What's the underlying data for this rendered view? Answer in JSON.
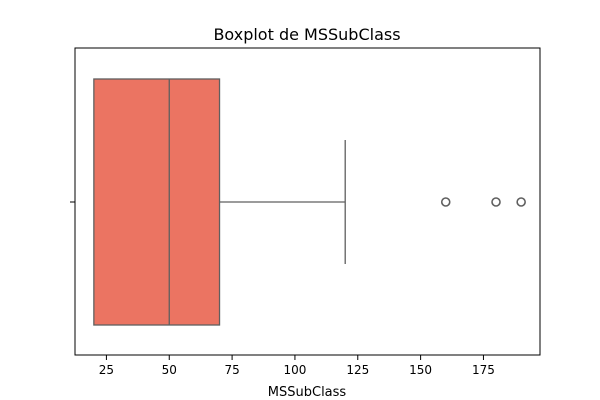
{
  "chart_data": {
    "type": "box",
    "orientation": "horizontal",
    "title": "Boxplot de MSSubClass",
    "xlabel": "MSSubClass",
    "ylabel": "",
    "xlim": [
      12.5,
      197.5
    ],
    "xticks": [
      25,
      50,
      75,
      100,
      125,
      150,
      175
    ],
    "grid": false,
    "box": {
      "min": 20,
      "q1": 20,
      "median": 50,
      "q3": 70,
      "whisker_low": 20,
      "whisker_high": 120,
      "outliers": [
        160,
        180,
        190
      ]
    },
    "colors": {
      "box_fill": "#eb7462",
      "line": "#5f5f5f",
      "axis": "#000000"
    }
  }
}
